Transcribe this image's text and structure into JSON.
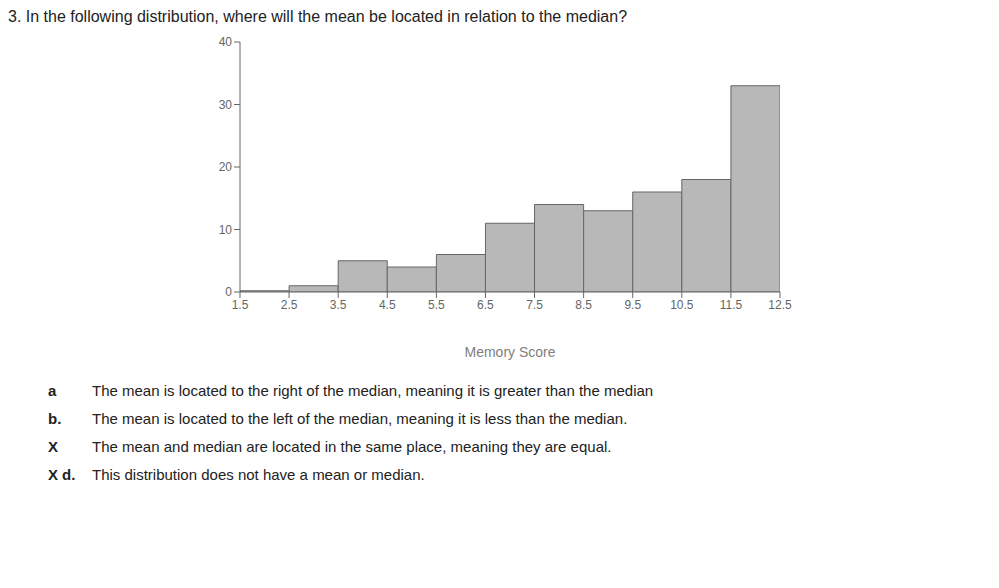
{
  "chart_data": {
    "type": "histogram",
    "title": "3. In the following distribution, where will the mean be located in relation to the median?",
    "xlabel": "Memory Score",
    "bins": [
      1.5,
      2.5,
      3.5,
      4.5,
      5.5,
      6.5,
      7.5,
      8.5,
      9.5,
      10.5,
      11.5,
      12.5
    ],
    "values": [
      0.2,
      1.0,
      5.0,
      4.0,
      6.0,
      11.0,
      14.0,
      13.0,
      16.0,
      18.0,
      33.0
    ],
    "color": "#b8b8b8",
    "xlim": [
      1.5,
      12.5
    ],
    "xticks": [
      1.5,
      2.5,
      3.5,
      4.5,
      5.5,
      6.5,
      7.5,
      8.5,
      9.5,
      10.5,
      11.5,
      12.5
    ],
    "ylim": [
      0,
      40
    ],
    "yticks": [
      0,
      10,
      20,
      30,
      40
    ],
    "grid": false,
    "annotations": [
      [
        "a",
        "The mean is located to the right of the median, meaning it is greater than the median"
      ],
      [
        "b.",
        "The mean is located to the left of the median, meaning it is less than the median."
      ],
      [
        "X",
        "The mean and median are located in the same place, meaning they are equal."
      ],
      [
        "X",
        "d.",
        "This distribution does not have a mean or median."
      ]
    ]
  }
}
